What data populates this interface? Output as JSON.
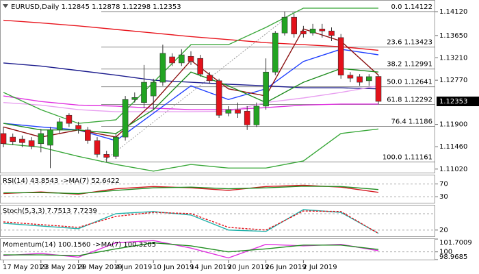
{
  "chart_data": {
    "type": "candlestick",
    "symbol": "EURUSD,Daily",
    "categories": [
      "17 May 2019",
      null,
      null,
      null,
      "23 May 2019",
      null,
      null,
      null,
      "29 May 2019",
      null,
      null,
      null,
      "4 Jun 2019",
      null,
      null,
      null,
      "10 Jun 2019",
      null,
      null,
      null,
      "14 Jun 2019",
      null,
      null,
      null,
      "20 Jun 2019",
      null,
      null,
      null,
      "26 Jun 2019",
      null,
      null,
      null,
      "2 Jul 2019",
      null,
      null,
      null,
      null,
      null,
      null,
      null,
      null
    ],
    "open": [
      1.1172,
      1.1165,
      1.1161,
      1.1158,
      1.1152,
      1.1149,
      1.1179,
      1.1208,
      1.1188,
      1.1179,
      1.1158,
      1.1131,
      1.1127,
      1.1165,
      1.1239,
      1.1233,
      1.1246,
      1.1273,
      1.1323,
      1.1311,
      1.1324,
      1.132,
      1.1287,
      1.1276,
      1.1212,
      1.1219,
      1.1216,
      1.1189,
      1.1226,
      1.1293,
      1.137,
      1.1401,
      1.1374,
      1.137,
      1.1378,
      1.1374,
      1.1361,
      1.1287,
      1.1284,
      1.1276,
      1.12845
    ],
    "high": [
      1.1185,
      1.1172,
      1.1168,
      1.1165,
      1.1181,
      1.1185,
      1.1203,
      1.1212,
      1.1195,
      1.1185,
      1.1165,
      1.1138,
      1.1172,
      1.1246,
      1.1253,
      1.1307,
      1.128,
      1.1347,
      1.133,
      1.1338,
      1.1334,
      1.1327,
      1.1293,
      1.128,
      1.1226,
      1.1233,
      1.1226,
      1.1233,
      1.132,
      1.1374,
      1.1412,
      1.1408,
      1.1384,
      1.1388,
      1.1388,
      1.1381,
      1.1368,
      1.1293,
      1.1289,
      1.1289,
      1.12878
    ],
    "low": [
      1.1145,
      1.1149,
      1.1145,
      1.1141,
      1.1135,
      1.1104,
      1.1172,
      1.1185,
      1.1172,
      1.1152,
      1.1125,
      1.1116,
      1.1122,
      1.1158,
      1.1233,
      1.1222,
      1.1219,
      1.1266,
      1.1305,
      1.1305,
      1.1307,
      1.1284,
      1.127,
      1.1203,
      1.1206,
      1.1203,
      1.1179,
      1.1185,
      1.1219,
      1.1287,
      1.1365,
      1.1361,
      1.1361,
      1.1365,
      1.1361,
      1.1354,
      1.128,
      1.1273,
      1.1266,
      1.1266,
      1.12298
    ],
    "close": [
      1.1152,
      1.1156,
      1.1154,
      1.1147,
      1.1172,
      1.1179,
      1.1195,
      1.1192,
      1.1181,
      1.1158,
      1.1131,
      1.1125,
      1.1165,
      1.1239,
      1.1243,
      1.1273,
      1.1273,
      1.133,
      1.1311,
      1.1327,
      1.1314,
      1.1289,
      1.1276,
      1.1208,
      1.1219,
      1.1212,
      1.1189,
      1.1226,
      1.1293,
      1.137,
      1.1401,
      1.1368,
      1.1368,
      1.1378,
      1.1374,
      1.1365,
      1.1287,
      1.1281,
      1.1273,
      1.1284,
      1.12353
    ],
    "up_color": "#22a422",
    "down_color": "#e3121b",
    "ylim": [
      1.1095,
      1.1435
    ],
    "yticks": [
      {
        "value": 1.1412,
        "label": "1.14120"
      },
      {
        "value": 1.1365,
        "label": "1.13650"
      },
      {
        "value": 1.1321,
        "label": "1.13210"
      },
      {
        "value": 1.1277,
        "label": "1.12770"
      },
      {
        "value": 1.119,
        "label": "1.11900"
      },
      {
        "value": 1.1146,
        "label": "1.11460"
      },
      {
        "value": 1.1102,
        "label": "1.11020"
      }
    ],
    "overlays": {
      "x": [
        0,
        4,
        8,
        12,
        16,
        20,
        24,
        28,
        32,
        36,
        40
      ],
      "series": [
        {
          "color": "#e8141c",
          "values": [
            1.1395,
            1.139,
            1.1384,
            1.1377,
            1.137,
            1.1363,
            1.1357,
            1.1351,
            1.1347,
            1.1343,
            1.1336
          ]
        },
        {
          "color": "#1a1a8c",
          "values": [
            1.1311,
            1.1305,
            1.1296,
            1.1287,
            1.1277,
            1.1273,
            1.1269,
            1.1266,
            1.1262,
            1.1262,
            1.126
          ]
        },
        {
          "color": "#e030e0",
          "values": [
            1.1246,
            1.1235,
            1.1228,
            1.1226,
            1.1222,
            1.1219,
            1.1219,
            1.1223,
            1.1228,
            1.123,
            1.123
          ]
        },
        {
          "color": "#e8a0f0",
          "values": [
            1.1233,
            1.1228,
            1.1219,
            1.1215,
            1.1215,
            1.1215,
            1.1216,
            1.1233,
            1.1242,
            1.1253,
            1.1266
          ]
        },
        {
          "color": "#1f3fff",
          "values": [
            1.1192,
            1.1185,
            1.1179,
            1.1158,
            1.1212,
            1.1266,
            1.1239,
            1.126,
            1.1314,
            1.1338,
            1.1327
          ]
        },
        {
          "color": "#8b1010",
          "values": [
            1.1185,
            1.1165,
            1.1179,
            1.1165,
            1.1233,
            1.1316,
            1.126,
            1.1246,
            1.1378,
            1.1354,
            1.1287
          ]
        },
        {
          "color": "#1e8c1e",
          "values": [
            1.1192,
            1.1179,
            1.1179,
            1.1172,
            1.1219,
            1.1293,
            1.1266,
            1.1233,
            1.1273,
            1.13,
            1.1293
          ]
        },
        {
          "color": "#3aa83a",
          "values": [
            1.1253,
            1.1219,
            1.1192,
            1.1199,
            1.1273,
            1.1347,
            1.1347,
            1.1381,
            1.1419,
            1.1419,
            1.1419
          ]
        },
        {
          "color": "#3aa83a",
          "values": [
            1.1152,
            1.1145,
            1.1127,
            1.1111,
            1.1098,
            1.1111,
            1.1104,
            1.1104,
            1.1118,
            1.1172,
            1.1181
          ]
        }
      ]
    },
    "fib": [
      {
        "level": "0.0",
        "price": 1.14122
      },
      {
        "level": "23.6",
        "price": 1.13423
      },
      {
        "level": "38.2",
        "price": 1.12991
      },
      {
        "level": "50.0",
        "price": 1.12641
      },
      {
        "level": "61.8",
        "price": 1.12292
      },
      {
        "level": "76.4",
        "price": 1.1186
      },
      {
        "level": "100.0",
        "price": 1.11161
      }
    ],
    "panels": [
      {
        "type": "line",
        "ylim": [
          9,
          97
        ],
        "yticks": [
          70,
          30
        ],
        "levels": [
          70,
          30
        ],
        "x": [
          0,
          4,
          8,
          12,
          16,
          20,
          24,
          28,
          32,
          36,
          40
        ],
        "series": [
          {
            "name": "RSI(14)",
            "color": "#d4141c",
            "values": [
              40,
              45,
              38,
              55,
              62,
              58,
              50,
              62,
              66,
              60,
              43.8543
            ]
          },
          {
            "name": "->MA(7)",
            "color": "#1e8c1e",
            "values": [
              42,
              43,
              40,
              50,
              58,
              60,
              55,
              58,
              63,
              62,
              52.6422
            ]
          }
        ]
      },
      {
        "type": "line",
        "ylim": [
          -3,
          110
        ],
        "yticks": [
          20
        ],
        "levels": [
          80,
          20
        ],
        "x": [
          0,
          4,
          8,
          12,
          16,
          20,
          24,
          28,
          32,
          36,
          40
        ],
        "series": [
          {
            "name": "Stoch(5,3,3)",
            "color": "#20b2aa",
            "values": [
              45,
              35,
              25,
              80,
              88,
              75,
              20,
              15,
              95,
              85,
              7.7513
            ]
          },
          {
            "color": "#e3121b",
            "dashed": true,
            "values": [
              50,
              40,
              30,
              70,
              85,
              80,
              30,
              20,
              90,
              88,
              7.7239
            ]
          }
        ]
      },
      {
        "type": "line",
        "ylim": [
          98.9685,
          101.7009
        ],
        "yticks": [
          101.7009,
          100,
          98.9685
        ],
        "levels": [
          100
        ],
        "x": [
          0,
          4,
          8,
          12,
          16,
          20,
          24,
          28,
          32,
          36,
          40
        ],
        "series": [
          {
            "name": "Momentum(14)",
            "color": "#e030e0",
            "values": [
              99.5,
              99.8,
              99.3,
              101.2,
              101.5,
              100.5,
              99.2,
              101.0,
              100.8,
              101.0,
              100.156
            ],
            "value_labels": [
              null,
              null,
              null,
              null,
              null,
              null,
              null,
              null,
              null,
              null,
              "100.1560"
            ]
          },
          {
            "name": "->MA(7)",
            "color": "#1e8c1e",
            "values": [
              99.6,
              99.6,
              99.5,
              100.4,
              101.2,
              100.8,
              100.0,
              100.4,
              100.9,
              100.9,
              100.3205
            ]
          }
        ]
      }
    ]
  }
}
